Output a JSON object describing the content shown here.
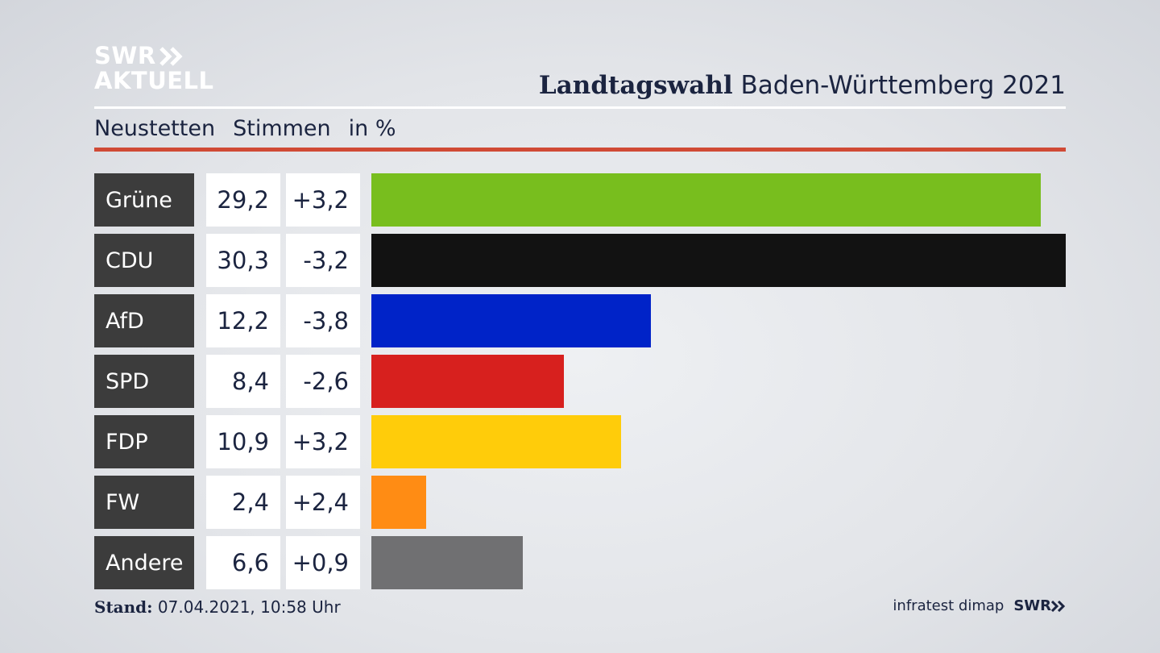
{
  "logo": {
    "line1": "SWR",
    "line2": "AKTUELL"
  },
  "headline": {
    "bold": "Landtagswahl",
    "rest": "Baden-Württemberg 2021"
  },
  "subtitle": {
    "place": "Neustetten",
    "metric": "Stimmen",
    "unit": "in %"
  },
  "colors": {
    "accent_rule": "#d04a35",
    "label_bg": "#3c3c3c"
  },
  "chart_data": {
    "type": "bar",
    "orientation": "horizontal",
    "categories": [
      "Grüne",
      "CDU",
      "AfD",
      "SPD",
      "FDP",
      "FW",
      "Andere"
    ],
    "series": [
      {
        "values": [
          29.2,
          30.3,
          12.2,
          8.4,
          10.9,
          2.4,
          6.6
        ]
      }
    ],
    "value_labels": [
      "29,2",
      "30,3",
      "12,2",
      "8,4",
      "10,9",
      "2,4",
      "6,6"
    ],
    "change_labels": [
      "+3,2",
      "-3,2",
      "-3,8",
      "-2,6",
      "+3,2",
      "+2,4",
      "+0,9"
    ],
    "changes": [
      3.2,
      -3.2,
      -3.8,
      -2.6,
      3.2,
      2.4,
      0.9
    ],
    "bar_colors": [
      "#78be1e",
      "#121212",
      "#0023c8",
      "#d7201e",
      "#ffcc0a",
      "#ff8c14",
      "#707072"
    ]
  },
  "footer": {
    "stand_label": "Stand:",
    "stand_value": "07.04.2021, 10:58 Uhr",
    "source": "infratest dimap",
    "brand": "SWR"
  }
}
